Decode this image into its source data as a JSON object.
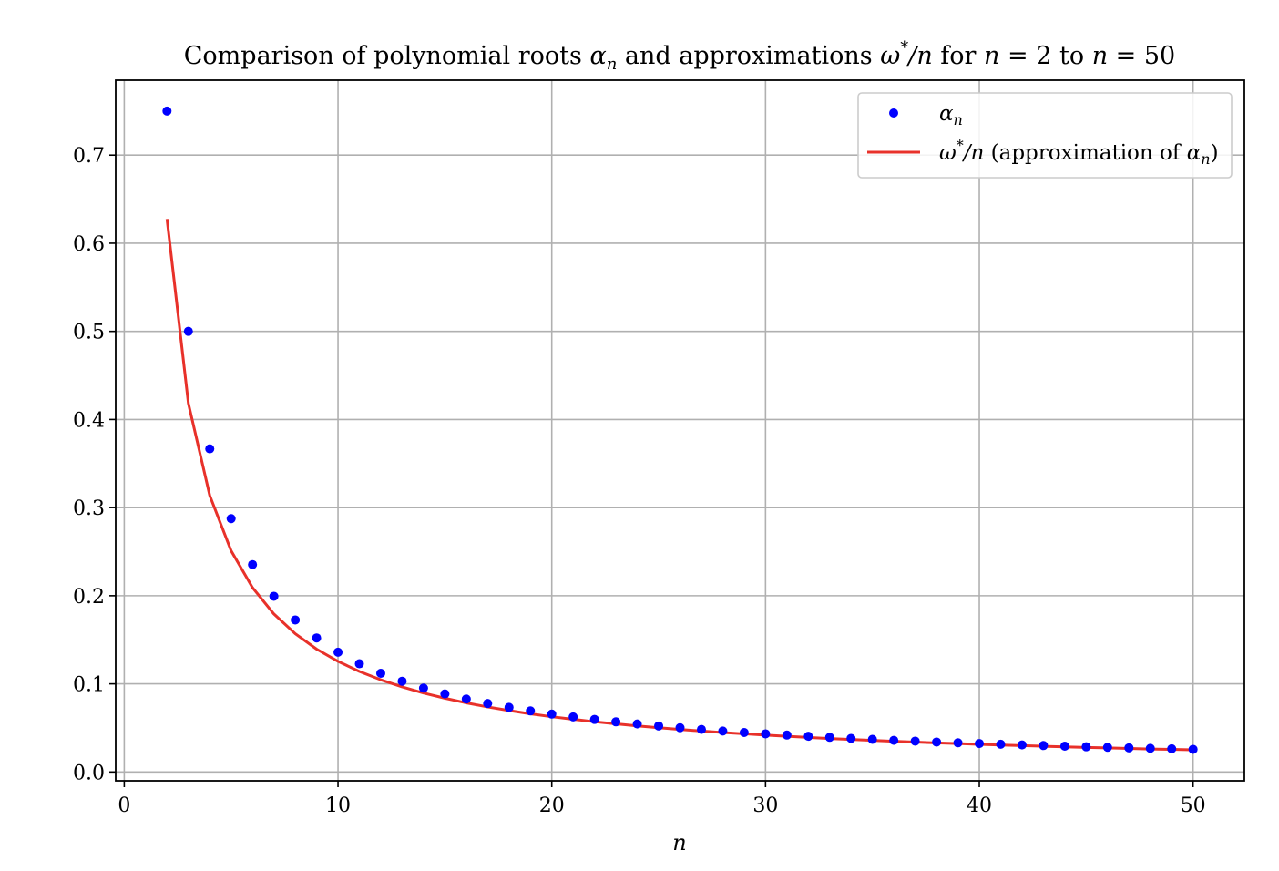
{
  "chart_data": {
    "type": "scatter",
    "title": "Comparison of polynomial roots αₙ and approximations ω*/n for n = 2 to n = 50",
    "xlabel": "n",
    "ylabel": "",
    "xlim": [
      -0.4,
      52.4
    ],
    "ylim": [
      -0.01,
      0.785
    ],
    "xticks": [
      0,
      10,
      20,
      30,
      40,
      50
    ],
    "yticks": [
      0.0,
      0.1,
      0.2,
      0.3,
      0.4,
      0.5,
      0.6,
      0.7
    ],
    "grid": true,
    "legend_position": "upper right",
    "series": [
      {
        "name": "αₙ",
        "kind": "scatter",
        "color": "#0000ff",
        "x": [
          2,
          3,
          4,
          5,
          6,
          7,
          8,
          9,
          10,
          11,
          12,
          13,
          14,
          15,
          16,
          17,
          18,
          19,
          20,
          21,
          22,
          23,
          24,
          25,
          26,
          27,
          28,
          29,
          30,
          31,
          32,
          33,
          34,
          35,
          36,
          37,
          38,
          39,
          40,
          41,
          42,
          43,
          44,
          45,
          46,
          47,
          48,
          49,
          50
        ],
        "values": [
          0.75,
          0.5,
          0.3667,
          0.2875,
          0.2353,
          0.1994,
          0.1725,
          0.1521,
          0.1359,
          0.1228,
          0.112,
          0.103,
          0.0952,
          0.0886,
          0.0828,
          0.0777,
          0.0733,
          0.0693,
          0.0657,
          0.0625,
          0.0596,
          0.0569,
          0.0545,
          0.0522,
          0.0502,
          0.0483,
          0.0465,
          0.0448,
          0.0433,
          0.0419,
          0.0405,
          0.0393,
          0.0381,
          0.037,
          0.0359,
          0.035,
          0.034,
          0.0331,
          0.0323,
          0.0315,
          0.0307,
          0.03,
          0.0293,
          0.0286,
          0.028,
          0.0274,
          0.0268,
          0.0263,
          0.0257
        ]
      },
      {
        "name": "ω*/n (approximation of αₙ)",
        "kind": "line",
        "color": "#e8312a",
        "x": [
          2,
          3,
          4,
          5,
          6,
          7,
          8,
          9,
          10,
          11,
          12,
          13,
          14,
          15,
          16,
          17,
          18,
          19,
          20,
          21,
          22,
          23,
          24,
          25,
          26,
          27,
          28,
          29,
          30,
          31,
          32,
          33,
          34,
          35,
          36,
          37,
          38,
          39,
          40,
          41,
          42,
          43,
          44,
          45,
          46,
          47,
          48,
          49,
          50
        ],
        "values": [
          0.6275,
          0.4183,
          0.3137,
          0.251,
          0.2092,
          0.1793,
          0.1569,
          0.1394,
          0.1255,
          0.1141,
          0.1046,
          0.0965,
          0.0896,
          0.0837,
          0.0784,
          0.0738,
          0.0697,
          0.066,
          0.0627,
          0.0598,
          0.057,
          0.0546,
          0.0523,
          0.0502,
          0.0483,
          0.0465,
          0.0448,
          0.0433,
          0.0418,
          0.0405,
          0.0392,
          0.038,
          0.0369,
          0.0359,
          0.0349,
          0.0339,
          0.033,
          0.0322,
          0.0314,
          0.0306,
          0.0299,
          0.0292,
          0.0285,
          0.0279,
          0.0273,
          0.0267,
          0.0261,
          0.0256,
          0.0251
        ]
      }
    ]
  }
}
